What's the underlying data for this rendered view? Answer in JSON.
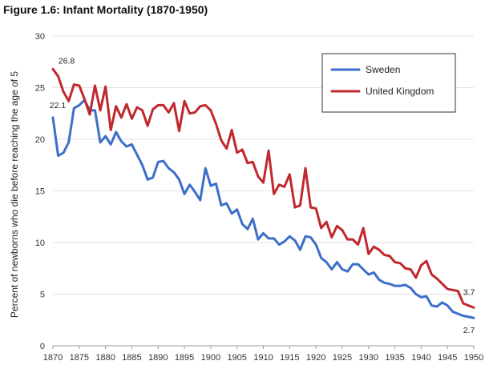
{
  "chart_data": {
    "type": "line",
    "title": "Figure 1.6: Infant Mortality (1870-1950)",
    "ylabel": "Percent of newborns who die before reaching the age of 5",
    "xlabel": "",
    "xlim": [
      1870,
      1950
    ],
    "ylim": [
      0,
      30
    ],
    "x_ticks": [
      1870,
      1875,
      1880,
      1885,
      1890,
      1895,
      1900,
      1905,
      1910,
      1915,
      1920,
      1925,
      1930,
      1935,
      1940,
      1945,
      1950
    ],
    "y_ticks": [
      0,
      5,
      10,
      15,
      20,
      25,
      30
    ],
    "grid": "horizontal",
    "legend_position": "top-right",
    "x": [
      1870,
      1871,
      1872,
      1873,
      1874,
      1875,
      1876,
      1877,
      1878,
      1879,
      1880,
      1881,
      1882,
      1883,
      1884,
      1885,
      1886,
      1887,
      1888,
      1889,
      1890,
      1891,
      1892,
      1893,
      1894,
      1895,
      1896,
      1897,
      1898,
      1899,
      1900,
      1901,
      1902,
      1903,
      1904,
      1905,
      1906,
      1907,
      1908,
      1909,
      1910,
      1911,
      1912,
      1913,
      1914,
      1915,
      1916,
      1917,
      1918,
      1919,
      1920,
      1921,
      1922,
      1923,
      1924,
      1925,
      1926,
      1927,
      1928,
      1929,
      1930,
      1931,
      1932,
      1933,
      1934,
      1935,
      1936,
      1937,
      1938,
      1939,
      1940,
      1941,
      1942,
      1943,
      1944,
      1945,
      1946,
      1947,
      1948,
      1949,
      1950
    ],
    "series": [
      {
        "name": "Sweden",
        "color": "#3b6fc9",
        "values": [
          22.1,
          18.4,
          18.7,
          19.7,
          23.0,
          23.3,
          23.8,
          22.8,
          22.8,
          19.7,
          20.3,
          19.5,
          20.7,
          19.8,
          19.3,
          19.5,
          18.5,
          17.5,
          16.1,
          16.3,
          17.8,
          17.9,
          17.2,
          16.8,
          16.1,
          14.7,
          15.6,
          14.9,
          14.1,
          17.2,
          15.5,
          15.7,
          13.6,
          13.8,
          12.8,
          13.2,
          11.8,
          11.3,
          12.3,
          10.3,
          10.9,
          10.4,
          10.4,
          9.8,
          10.1,
          10.6,
          10.2,
          9.3,
          10.6,
          10.5,
          9.8,
          8.5,
          8.1,
          7.4,
          8.1,
          7.4,
          7.2,
          7.9,
          7.9,
          7.4,
          6.9,
          7.1,
          6.4,
          6.1,
          6.0,
          5.8,
          5.8,
          5.9,
          5.6,
          5.0,
          4.7,
          4.8,
          3.9,
          3.8,
          4.2,
          3.9,
          3.3,
          3.1,
          2.9,
          2.8,
          2.7
        ]
      },
      {
        "name": "United Kingdom",
        "color": "#c0282e",
        "values": [
          26.8,
          26.1,
          24.6,
          23.7,
          25.3,
          25.2,
          23.9,
          22.4,
          25.2,
          22.8,
          25.1,
          20.9,
          23.2,
          22.1,
          23.4,
          22.0,
          23.1,
          22.8,
          21.3,
          22.9,
          23.3,
          23.3,
          22.6,
          23.5,
          20.8,
          23.7,
          22.5,
          22.6,
          23.2,
          23.3,
          22.8,
          21.5,
          19.9,
          19.1,
          20.9,
          18.7,
          19.0,
          17.7,
          17.8,
          16.4,
          15.8,
          18.9,
          14.7,
          15.6,
          15.4,
          16.6,
          13.4,
          13.6,
          17.2,
          13.4,
          13.3,
          11.4,
          12.0,
          10.5,
          11.6,
          11.2,
          10.3,
          10.3,
          9.8,
          11.4,
          8.9,
          9.6,
          9.3,
          8.8,
          8.7,
          8.1,
          8.0,
          7.5,
          7.4,
          6.6,
          7.8,
          8.2,
          6.9,
          6.5,
          6.0,
          5.5,
          5.4,
          5.3,
          4.1,
          3.9,
          3.7
        ]
      }
    ],
    "annotations": [
      {
        "series": "Sweden",
        "x": 1870,
        "text": "22.1"
      },
      {
        "series": "United Kingdom",
        "x": 1870,
        "text": "26.8"
      },
      {
        "series": "United Kingdom",
        "x": 1950,
        "text": "3.7"
      },
      {
        "series": "Sweden",
        "x": 1950,
        "text": "2.7"
      }
    ]
  }
}
